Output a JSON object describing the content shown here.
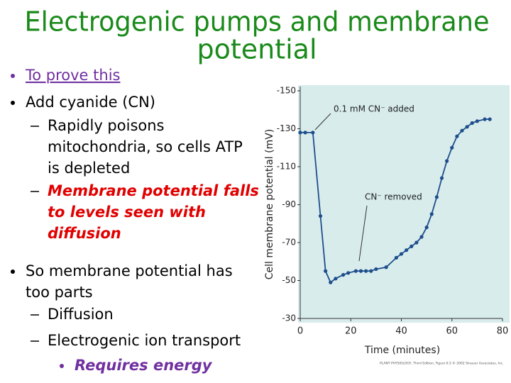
{
  "title": {
    "lines": [
      "Electrogenic pumps and membrane",
      "potential"
    ],
    "color": "#1a8a1a"
  },
  "bullets": [
    {
      "level": 1,
      "lines": [
        "To prove this"
      ],
      "color": "#7030a0",
      "underline": true
    },
    {
      "level": 1,
      "lines": [
        "Add cyanide (CN)"
      ],
      "color": "#000000"
    },
    {
      "level": 2,
      "lines": [
        "Rapidly poisons",
        "mitochondria, so cells ATP",
        "is depleted"
      ],
      "color": "#000000"
    },
    {
      "level": 2,
      "lines": [
        "Membrane potential falls",
        "to levels seen with",
        "diffusion"
      ],
      "color": "#e00000",
      "emphasis": true
    },
    {
      "level": 1,
      "lines": [
        "So membrane potential has",
        "too parts"
      ],
      "color": "#000000"
    },
    {
      "level": 2,
      "lines": [
        "Diffusion"
      ],
      "color": "#000000"
    },
    {
      "level": 2,
      "lines": [
        "Electrogenic ion transport"
      ],
      "color": "#000000"
    },
    {
      "level": 3,
      "lines": [
        "Requires energy"
      ],
      "color": "#7030a0",
      "emphasis": true
    }
  ],
  "chart_data": {
    "type": "line",
    "x_label": "Time (minutes)",
    "y_label": "Cell membrane potential (mV)",
    "annotations": [
      "0.1 mM CN⁻ added",
      "CN⁻ removed"
    ],
    "caption": "PLANT PHYSIOLOGY, Third Edition, Figure 6.5 © 2002 Sinauer Associates, Inc.",
    "x": [
      0,
      2,
      5,
      8,
      10,
      12,
      14,
      17,
      19,
      22,
      24,
      26,
      28,
      30,
      34,
      38,
      40,
      42,
      44,
      46,
      48,
      50,
      52,
      54,
      56,
      58,
      60,
      62,
      64,
      66,
      68,
      70,
      73,
      75
    ],
    "series": [
      {
        "color": "#1f4e8c",
        "values": [
          -128,
          -128,
          -128,
          -84,
          -55,
          -49,
          -51,
          -53,
          -54,
          -55,
          -55,
          -55,
          -55,
          -56,
          -57,
          -62,
          -64,
          -66,
          -68,
          -70,
          -73,
          -78,
          -85,
          -94,
          -104,
          -113,
          -120,
          -126,
          -129,
          -131,
          -133,
          -134,
          -135,
          -135
        ]
      }
    ],
    "xlim": [
      0,
      80
    ],
    "xticks": [
      0,
      20,
      40,
      60,
      80
    ],
    "ylim": [
      -30,
      -150
    ],
    "yticks": [
      -150,
      -130,
      -110,
      -90,
      -70,
      -50,
      -30
    ],
    "background": "#d8ecec"
  }
}
